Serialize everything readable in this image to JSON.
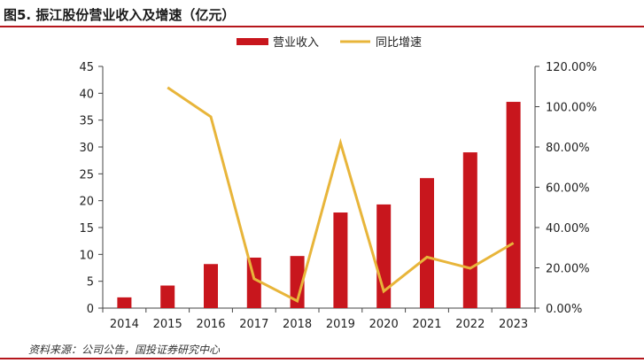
{
  "title": "图5. 振江股份营业收入及增速（亿元）",
  "source": "资料来源：公司公告，国投证券研究中心",
  "chart_data": {
    "type": "bar",
    "categories": [
      "2014",
      "2015",
      "2016",
      "2017",
      "2018",
      "2019",
      "2020",
      "2021",
      "2022",
      "2023"
    ],
    "series": [
      {
        "name": "营业收入",
        "chart": "bar",
        "axis": "left",
        "color": "#c8161d",
        "values": [
          2.0,
          4.2,
          8.2,
          9.4,
          9.7,
          17.8,
          19.3,
          24.2,
          29.0,
          38.4
        ]
      },
      {
        "name": "同比增速",
        "chart": "line",
        "axis": "right",
        "color": "#e8b53a",
        "values": [
          null,
          109.5,
          95.0,
          14.6,
          3.5,
          82.0,
          8.4,
          25.3,
          19.8,
          32.3
        ]
      }
    ],
    "y_left": {
      "min": 0,
      "max": 45,
      "ticks": [
        "0",
        "5",
        "10",
        "15",
        "20",
        "25",
        "30",
        "35",
        "40",
        "45"
      ]
    },
    "y_right": {
      "min": 0,
      "max": 120,
      "ticks": [
        "0.00%",
        "20.00%",
        "40.00%",
        "60.00%",
        "80.00%",
        "100.00%",
        "120.00%"
      ]
    },
    "legend_position": "top-center",
    "grid": false
  }
}
